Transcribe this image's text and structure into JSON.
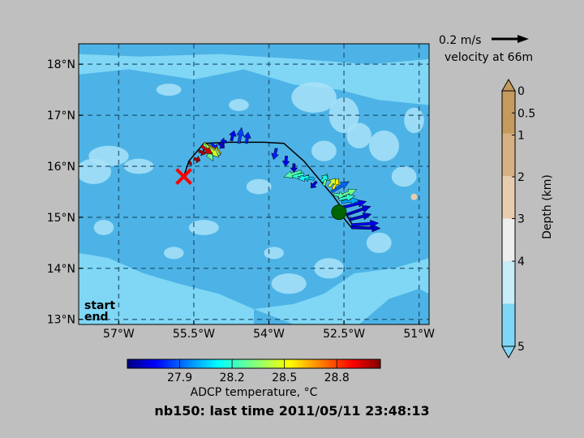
{
  "title": "nb150: last time 2011/05/11 23:48:13",
  "colors": {
    "background": "#bfbfbf",
    "depth_levels": [
      "#7fd7f5",
      "#4db3e6",
      "#a9e2f8"
    ],
    "start_marker": "#006400",
    "end_marker": "#ff0000",
    "track": "#000000"
  },
  "map": {
    "xlim": [
      -57.8,
      -50.8
    ],
    "ylim": [
      12.9,
      18.4
    ],
    "x_ticks": [
      {
        "value": -57,
        "label": "57°W"
      },
      {
        "value": -55.5,
        "label": "55.5°W"
      },
      {
        "value": -54,
        "label": "54°W"
      },
      {
        "value": -52.5,
        "label": "52.5°W"
      },
      {
        "value": -51,
        "label": "51°W"
      }
    ],
    "y_ticks": [
      {
        "value": 13,
        "label": "13°N"
      },
      {
        "value": 14,
        "label": "14°N"
      },
      {
        "value": 15,
        "label": "15°N"
      },
      {
        "value": 16,
        "label": "16°N"
      },
      {
        "value": 17,
        "label": "17°N"
      },
      {
        "value": 18,
        "label": "18°N"
      }
    ],
    "grid": "dashed",
    "legend": {
      "start_label": "start",
      "end_label": "end",
      "placement": "bottom-left"
    }
  },
  "velocity_key": {
    "label": "0.2 m/s",
    "caption": "velocity at 66m"
  },
  "depth_colorbar": {
    "label": "Depth (km)",
    "ticks": [
      "0",
      "0.5",
      "1",
      "2",
      "3",
      "4",
      "5"
    ],
    "colors": [
      "#c49a5e",
      "#d6b184",
      "#e8ccb0",
      "#eeeeee",
      "#c8ecf8",
      "#7fd7f5"
    ],
    "extend": "both"
  },
  "temp_colorbar": {
    "label": "ADCP temperature, °C",
    "ticks": [
      {
        "value": 27.9,
        "label": "27.9"
      },
      {
        "value": 28.2,
        "label": "28.2"
      },
      {
        "value": 28.5,
        "label": "28.5"
      },
      {
        "value": 28.8,
        "label": "28.8"
      }
    ],
    "range": [
      27.6,
      29.05
    ]
  },
  "chart_data": {
    "type": "scatter",
    "description_kind": "ship track with current vectors over bathymetry",
    "start": {
      "lon": -52.6,
      "lat": 15.1
    },
    "end": {
      "lon": -55.7,
      "lat": 15.8
    },
    "track": [
      [
        -52.6,
        15.1
      ],
      [
        -52.35,
        14.8
      ],
      [
        -52.3,
        14.8
      ],
      [
        -52.45,
        15.05
      ],
      [
        -52.7,
        15.4
      ],
      [
        -53.0,
        15.75
      ],
      [
        -53.3,
        16.1
      ],
      [
        -53.7,
        16.45
      ],
      [
        -54.1,
        16.47
      ],
      [
        -54.8,
        16.47
      ],
      [
        -55.3,
        16.45
      ],
      [
        -55.6,
        16.1
      ],
      [
        -55.7,
        15.8
      ]
    ],
    "vectors": [
      {
        "lon": -52.35,
        "lat": 14.8,
        "u": 1.55,
        "v": -0.05,
        "t": 27.7
      },
      {
        "lon": -52.35,
        "lat": 14.85,
        "u": 1.45,
        "v": 0.1,
        "t": 27.75
      },
      {
        "lon": -52.4,
        "lat": 14.95,
        "u": 1.2,
        "v": 0.3,
        "t": 27.7
      },
      {
        "lon": -52.45,
        "lat": 15.05,
        "u": 1.3,
        "v": 0.45,
        "t": 27.7
      },
      {
        "lon": -52.5,
        "lat": 15.2,
        "u": 1.2,
        "v": 0.3,
        "t": 27.75
      },
      {
        "lon": -52.55,
        "lat": 15.3,
        "u": 0.95,
        "v": 0.1,
        "t": 28.0
      },
      {
        "lon": -52.6,
        "lat": 15.35,
        "u": 0.85,
        "v": 0.2,
        "t": 28.2
      },
      {
        "lon": -52.62,
        "lat": 15.4,
        "u": 1.0,
        "v": 0.4,
        "t": 28.3
      },
      {
        "lon": -52.7,
        "lat": 15.45,
        "u": 0.55,
        "v": -0.1,
        "t": 28.25
      },
      {
        "lon": -52.75,
        "lat": 15.5,
        "u": 0.95,
        "v": 0.55,
        "t": 27.9
      },
      {
        "lon": -52.72,
        "lat": 15.55,
        "u": 0.3,
        "v": 0.6,
        "t": 28.55
      },
      {
        "lon": -52.8,
        "lat": 15.6,
        "u": 0.35,
        "v": 0.45,
        "t": 28.45
      },
      {
        "lon": -52.9,
        "lat": 15.62,
        "u": 0.15,
        "v": 0.65,
        "t": 28.3
      },
      {
        "lon": -52.95,
        "lat": 15.7,
        "u": 0.3,
        "v": 0.35,
        "t": 28.15
      },
      {
        "lon": -53.05,
        "lat": 15.7,
        "u": -0.3,
        "v": -0.35,
        "t": 27.7
      },
      {
        "lon": -53.1,
        "lat": 15.75,
        "u": -0.6,
        "v": 0.1,
        "t": 28.05
      },
      {
        "lon": -53.2,
        "lat": 15.8,
        "u": -0.55,
        "v": -0.15,
        "t": 28.15
      },
      {
        "lon": -53.3,
        "lat": 15.85,
        "u": -0.7,
        "v": -0.15,
        "t": 28.2
      },
      {
        "lon": -53.35,
        "lat": 15.9,
        "u": -0.95,
        "v": -0.3,
        "t": 28.25
      },
      {
        "lon": -53.5,
        "lat": 16.05,
        "u": 0.0,
        "v": -0.45,
        "t": 27.7
      },
      {
        "lon": -53.65,
        "lat": 16.2,
        "u": -0.05,
        "v": -0.55,
        "t": 27.75
      },
      {
        "lon": -53.85,
        "lat": 16.35,
        "u": -0.15,
        "v": -0.6,
        "t": 27.8
      },
      {
        "lon": -54.45,
        "lat": 16.45,
        "u": 0.1,
        "v": 0.6,
        "t": 27.8
      },
      {
        "lon": -54.6,
        "lat": 16.45,
        "u": 0.15,
        "v": 0.85,
        "t": 27.85
      },
      {
        "lon": -54.75,
        "lat": 16.5,
        "u": 0.15,
        "v": 0.55,
        "t": 27.75
      },
      {
        "lon": -54.85,
        "lat": 16.48,
        "u": -0.3,
        "v": 0.05,
        "t": 27.75
      },
      {
        "lon": -55.0,
        "lat": 16.45,
        "u": 0.3,
        "v": -0.25,
        "t": 27.7
      },
      {
        "lon": -55.15,
        "lat": 16.45,
        "u": 0.35,
        "v": -0.35,
        "t": 27.8
      },
      {
        "lon": -55.3,
        "lat": 16.45,
        "u": 0.95,
        "v": -0.55,
        "t": 28.65
      },
      {
        "lon": -55.3,
        "lat": 16.45,
        "u": 0.9,
        "v": -0.65,
        "t": 28.35
      },
      {
        "lon": -55.3,
        "lat": 16.45,
        "u": 0.8,
        "v": -0.75,
        "t": 28.45
      },
      {
        "lon": -55.3,
        "lat": 16.43,
        "u": 0.5,
        "v": -0.9,
        "t": 28.3
      },
      {
        "lon": -55.35,
        "lat": 16.4,
        "u": 0.6,
        "v": -0.45,
        "t": 28.95
      },
      {
        "lon": -55.4,
        "lat": 16.3,
        "u": 0.35,
        "v": -0.15,
        "t": 29.0
      },
      {
        "lon": -55.5,
        "lat": 16.15,
        "u": 0.35,
        "v": -0.1,
        "t": 29.0
      },
      {
        "lon": -55.6,
        "lat": 16.05,
        "u": 0.15,
        "v": 0.05,
        "t": 29.0
      }
    ]
  }
}
